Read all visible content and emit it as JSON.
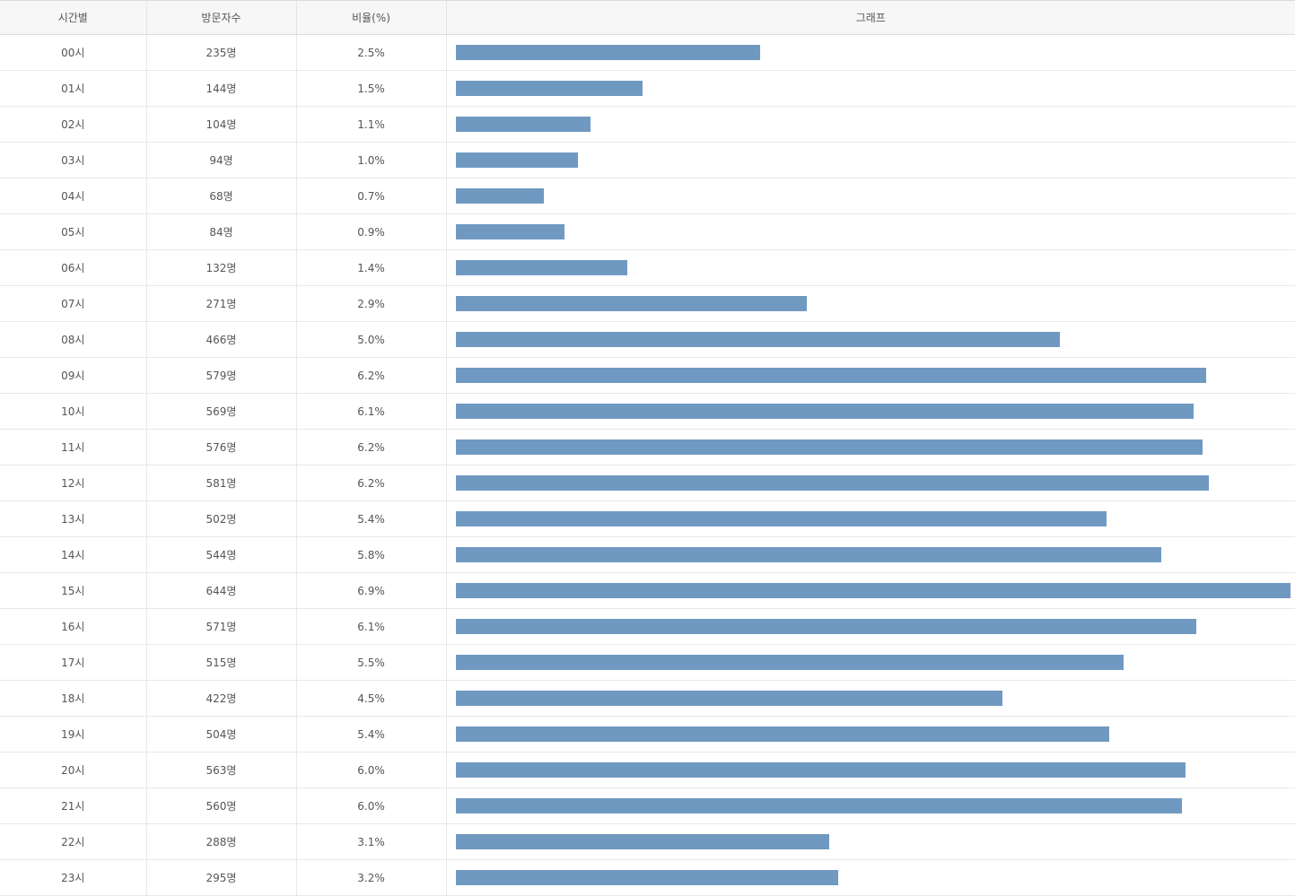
{
  "table": {
    "headers": {
      "hour": "시간별",
      "visits": "방문자수",
      "ratio": "비율(%)",
      "graph": "그래프"
    },
    "bar_color": "#7099c2",
    "rows": [
      {
        "hour": "00시",
        "visits": "235명",
        "ratio": "2.5%",
        "value": 235
      },
      {
        "hour": "01시",
        "visits": "144명",
        "ratio": "1.5%",
        "value": 144
      },
      {
        "hour": "02시",
        "visits": "104명",
        "ratio": "1.1%",
        "value": 104
      },
      {
        "hour": "03시",
        "visits": "94명",
        "ratio": "1.0%",
        "value": 94
      },
      {
        "hour": "04시",
        "visits": "68명",
        "ratio": "0.7%",
        "value": 68
      },
      {
        "hour": "05시",
        "visits": "84명",
        "ratio": "0.9%",
        "value": 84
      },
      {
        "hour": "06시",
        "visits": "132명",
        "ratio": "1.4%",
        "value": 132
      },
      {
        "hour": "07시",
        "visits": "271명",
        "ratio": "2.9%",
        "value": 271
      },
      {
        "hour": "08시",
        "visits": "466명",
        "ratio": "5.0%",
        "value": 466
      },
      {
        "hour": "09시",
        "visits": "579명",
        "ratio": "6.2%",
        "value": 579
      },
      {
        "hour": "10시",
        "visits": "569명",
        "ratio": "6.1%",
        "value": 569
      },
      {
        "hour": "11시",
        "visits": "576명",
        "ratio": "6.2%",
        "value": 576
      },
      {
        "hour": "12시",
        "visits": "581명",
        "ratio": "6.2%",
        "value": 581
      },
      {
        "hour": "13시",
        "visits": "502명",
        "ratio": "5.4%",
        "value": 502
      },
      {
        "hour": "14시",
        "visits": "544명",
        "ratio": "5.8%",
        "value": 544
      },
      {
        "hour": "15시",
        "visits": "644명",
        "ratio": "6.9%",
        "value": 644
      },
      {
        "hour": "16시",
        "visits": "571명",
        "ratio": "6.1%",
        "value": 571
      },
      {
        "hour": "17시",
        "visits": "515명",
        "ratio": "5.5%",
        "value": 515
      },
      {
        "hour": "18시",
        "visits": "422명",
        "ratio": "4.5%",
        "value": 422
      },
      {
        "hour": "19시",
        "visits": "504명",
        "ratio": "5.4%",
        "value": 504
      },
      {
        "hour": "20시",
        "visits": "563명",
        "ratio": "6.0%",
        "value": 563
      },
      {
        "hour": "21시",
        "visits": "560명",
        "ratio": "6.0%",
        "value": 560
      },
      {
        "hour": "22시",
        "visits": "288명",
        "ratio": "3.1%",
        "value": 288
      },
      {
        "hour": "23시",
        "visits": "295명",
        "ratio": "3.2%",
        "value": 295
      }
    ]
  }
}
